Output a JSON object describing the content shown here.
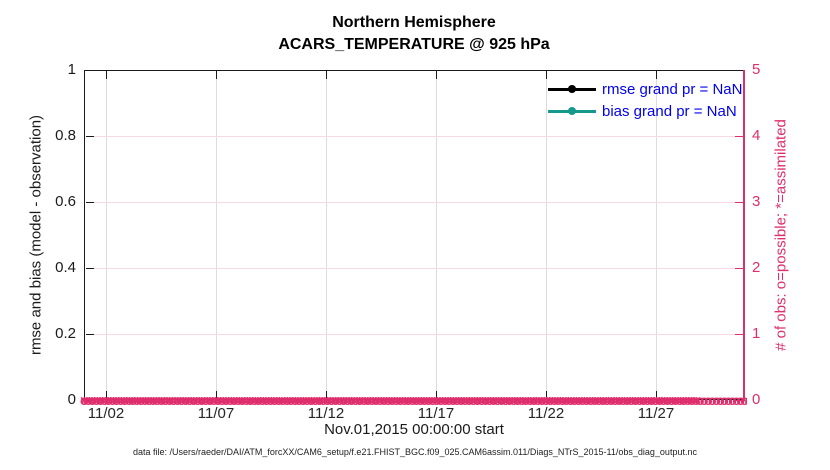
{
  "accent_colors": {
    "pink": "#de2e6b",
    "teal": "#14998c",
    "legend_text_blue": "#0000ee",
    "grid_gray": "#dcdcdc",
    "grid_pink": "#f6d9e4"
  },
  "title": {
    "line1": "Northern Hemisphere",
    "line2": "ACARS_TEMPERATURE @ 925 hPa"
  },
  "axes": {
    "left": {
      "label": "rmse and bias (model - observation)",
      "ticks_top_to_bottom": [
        "1",
        "0.8",
        "0.6",
        "0.4",
        "0.2",
        "0"
      ]
    },
    "right": {
      "label": "# of obs: o=possible; *=assimilated",
      "ticks_top_to_bottom": [
        "5",
        "4",
        "3",
        "2",
        "1",
        "0"
      ]
    },
    "x": {
      "label": "Nov.01,2015 00:00:00 start",
      "ticks": [
        "11/02",
        "11/07",
        "11/12",
        "11/17",
        "11/22",
        "11/27"
      ]
    }
  },
  "legend": [
    {
      "label": "rmse grand pr = NaN",
      "color": "#000000"
    },
    {
      "label": "bias grand pr = NaN",
      "color": "#14998c"
    }
  ],
  "footer": "data file: /Users/raeder/DAI/ATM_forcXX/CAM6_setup/f.e21.FHIST_BGC.f09_025.CAM6assim.011/Diags_NTrS_2015-11/obs_diag_output.nc",
  "chart_data": {
    "type": "line",
    "title": "Northern Hemisphere",
    "subtitle": "ACARS_TEMPERATURE @ 925 hPa",
    "xlabel": "Nov.01,2015 00:00:00 start",
    "ylabel_left": "rmse and bias (model - observation)",
    "ylabel_right": "# of obs: o=possible; *=assimilated",
    "x_tick_labels": [
      "11/02",
      "11/07",
      "11/12",
      "11/17",
      "11/22",
      "11/27"
    ],
    "x_range_days": [
      "2015-11-01",
      "2015-12-01"
    ],
    "ylim_left": [
      0,
      1
    ],
    "ylim_right": [
      0,
      5
    ],
    "grid": true,
    "legend_position": "top-right-inside",
    "series": [
      {
        "name": "rmse grand pr = NaN",
        "axis": "left",
        "color": "#000000",
        "marker": "filled-circle",
        "values": "NaN for all times (nothing plotted)"
      },
      {
        "name": "bias grand pr = NaN",
        "axis": "left",
        "color": "#14998c",
        "marker": "filled-circle",
        "values": "NaN for all times (nothing plotted)"
      },
      {
        "name": "# of obs possible (o)",
        "axis": "right",
        "color": "#de2e6b",
        "marker": "o",
        "constant_value": 0
      },
      {
        "name": "# of obs assimilated (x)",
        "axis": "right",
        "color": "#de2e6b",
        "marker": "x",
        "constant_value": 0
      }
    ],
    "zero_markers": {
      "glyph_possible": "o",
      "glyph_assimilated": "×",
      "count": 230
    }
  },
  "layout_ticks": {
    "x_offsets": [
      22,
      132,
      242,
      352,
      462,
      572
    ],
    "y_offsets": [
      0,
      66,
      132,
      198,
      264,
      330
    ],
    "hgrid_offsets": [
      66,
      132,
      198,
      264
    ]
  }
}
